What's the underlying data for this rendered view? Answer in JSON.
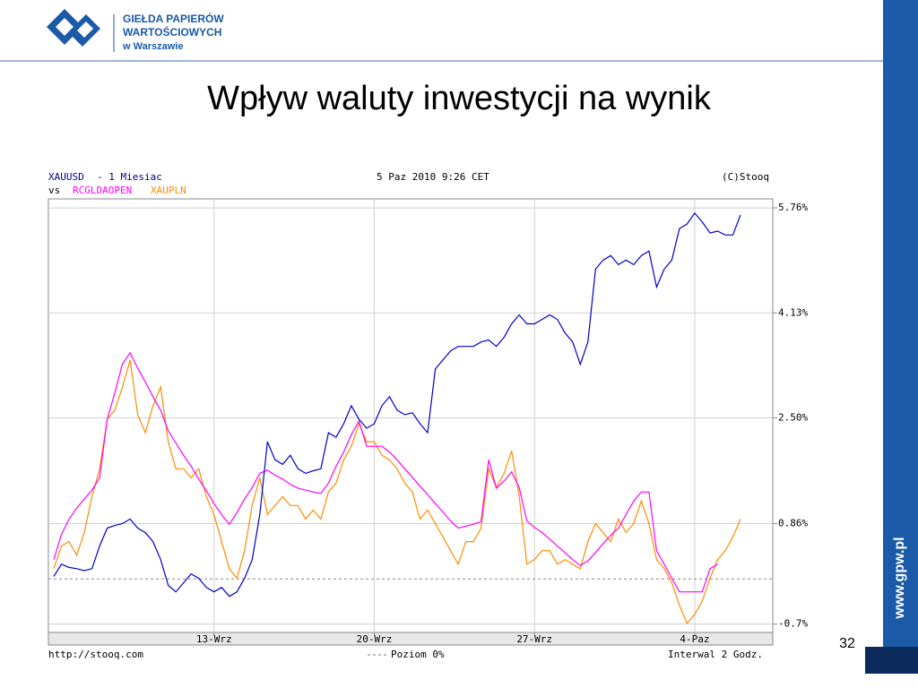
{
  "header": {
    "logo_lines": [
      "GIEŁDA PAPIERÓW",
      "WARTOŚCIOWYCH",
      "w Warszawie"
    ]
  },
  "slide": {
    "title": "Wpływ waluty inwestycji na wynik",
    "page_number": 32,
    "side_text": "www.gpw.pl"
  },
  "chart_data": {
    "type": "line",
    "subtitle": "- 1 Miesiac",
    "vs_label": "vs",
    "timestamp": "5 Paz 2010 9:26 CET",
    "copyright": "(C)Stooq",
    "footer_left": "http://stooq.com",
    "footer_right": "Interwal 2 Godz.",
    "reference_line": {
      "value": 0,
      "label": "Poziom 0%"
    },
    "categories": [
      null,
      null,
      null,
      null,
      null,
      null,
      null,
      null,
      null,
      null,
      null,
      null,
      null,
      null,
      null,
      null,
      null,
      null,
      null,
      null,
      null,
      "13-Wrz",
      null,
      null,
      null,
      null,
      null,
      null,
      null,
      null,
      null,
      null,
      null,
      null,
      null,
      null,
      null,
      null,
      null,
      null,
      null,
      null,
      "20-Wrz",
      null,
      null,
      null,
      null,
      null,
      null,
      null,
      null,
      null,
      null,
      null,
      null,
      null,
      null,
      null,
      null,
      null,
      null,
      null,
      null,
      "27-Wrz",
      null,
      null,
      null,
      null,
      null,
      null,
      null,
      null,
      null,
      null,
      null,
      null,
      null,
      null,
      null,
      null,
      null,
      null,
      null,
      null,
      "4-Paz",
      null,
      null,
      null,
      null,
      null,
      null
    ],
    "series": [
      {
        "name": "XAUUSD",
        "color": "#0000cc",
        "values": [
          0.04,
          0.23,
          0.18,
          0.16,
          0.13,
          0.16,
          0.51,
          0.79,
          0.83,
          0.86,
          0.93,
          0.79,
          0.72,
          0.58,
          0.3,
          -0.1,
          -0.2,
          -0.06,
          0.08,
          0.01,
          -0.13,
          -0.2,
          -0.13,
          -0.27,
          -0.2,
          0.01,
          0.3,
          1.0,
          2.13,
          1.85,
          1.78,
          1.92,
          1.71,
          1.64,
          1.68,
          1.71,
          2.27,
          2.2,
          2.41,
          2.69,
          2.48,
          2.34,
          2.41,
          2.69,
          2.83,
          2.62,
          2.55,
          2.58,
          2.41,
          2.27,
          3.26,
          3.4,
          3.54,
          3.61,
          3.61,
          3.61,
          3.68,
          3.71,
          3.61,
          3.75,
          3.96,
          4.1,
          3.96,
          3.96,
          4.03,
          4.1,
          4.03,
          3.82,
          3.68,
          3.33,
          3.68,
          4.81,
          4.95,
          5.02,
          4.88,
          4.95,
          4.88,
          5.02,
          5.09,
          4.53,
          4.81,
          4.95,
          5.44,
          5.51,
          5.68,
          5.54,
          5.37,
          5.4,
          5.34,
          5.34,
          5.65
        ]
      },
      {
        "name": "RCGLDAOPEN",
        "color": "#ff00ff",
        "values": [
          0.3,
          0.69,
          0.93,
          1.1,
          1.24,
          1.38,
          1.57,
          2.48,
          2.89,
          3.34,
          3.51,
          3.27,
          3.06,
          2.83,
          2.62,
          2.3,
          2.11,
          1.92,
          1.75,
          1.55,
          1.37,
          1.17,
          1.0,
          0.85,
          1.03,
          1.24,
          1.42,
          1.64,
          1.69,
          1.61,
          1.55,
          1.47,
          1.41,
          1.38,
          1.35,
          1.33,
          1.49,
          1.75,
          1.97,
          2.24,
          2.45,
          2.06,
          2.06,
          2.06,
          1.97,
          1.85,
          1.71,
          1.58,
          1.44,
          1.31,
          1.17,
          1.04,
          0.9,
          0.79,
          0.82,
          0.85,
          0.89,
          1.85,
          1.41,
          1.52,
          1.66,
          1.42,
          0.9,
          0.8,
          0.72,
          0.62,
          0.51,
          0.41,
          0.3,
          0.21,
          0.28,
          0.41,
          0.55,
          0.68,
          0.79,
          1.0,
          1.21,
          1.35,
          1.35,
          0.44,
          0.23,
          0.01,
          -0.2,
          -0.2,
          -0.2,
          -0.2,
          0.16,
          0.23,
          null,
          null,
          null
        ]
      },
      {
        "name": "XAUPLN",
        "color": "#ff8c00",
        "values": [
          0.16,
          0.51,
          0.58,
          0.37,
          0.72,
          1.28,
          1.71,
          2.48,
          2.62,
          2.98,
          3.4,
          2.55,
          2.27,
          2.69,
          2.98,
          2.13,
          1.71,
          1.71,
          1.57,
          1.71,
          1.28,
          1.0,
          0.58,
          0.16,
          0.01,
          0.44,
          1.14,
          1.57,
          1.0,
          1.14,
          1.28,
          1.14,
          1.14,
          0.93,
          1.07,
          0.93,
          1.35,
          1.49,
          1.85,
          2.06,
          2.41,
          2.13,
          2.13,
          1.92,
          1.85,
          1.71,
          1.49,
          1.35,
          0.93,
          1.07,
          0.86,
          0.65,
          0.44,
          0.23,
          0.58,
          0.58,
          0.79,
          1.71,
          1.42,
          1.64,
          1.99,
          1.28,
          0.23,
          0.3,
          0.44,
          0.44,
          0.23,
          0.3,
          0.23,
          0.16,
          0.58,
          0.86,
          0.72,
          0.58,
          0.93,
          0.72,
          0.86,
          1.21,
          0.86,
          0.3,
          0.16,
          -0.06,
          -0.41,
          -0.69,
          -0.55,
          -0.34,
          0.01,
          0.3,
          0.44,
          0.65,
          0.93
        ]
      }
    ],
    "ylim": [
      -0.83,
      5.9
    ],
    "yticks": [
      {
        "value": 5.76,
        "label": "5.76%"
      },
      {
        "value": 4.13,
        "label": "4.13%"
      },
      {
        "value": 2.5,
        "label": "2.50%"
      },
      {
        "value": 0.86,
        "label": "0.86%"
      },
      {
        "value": -0.7,
        "label": "-0.7%"
      }
    ],
    "grid": true
  }
}
